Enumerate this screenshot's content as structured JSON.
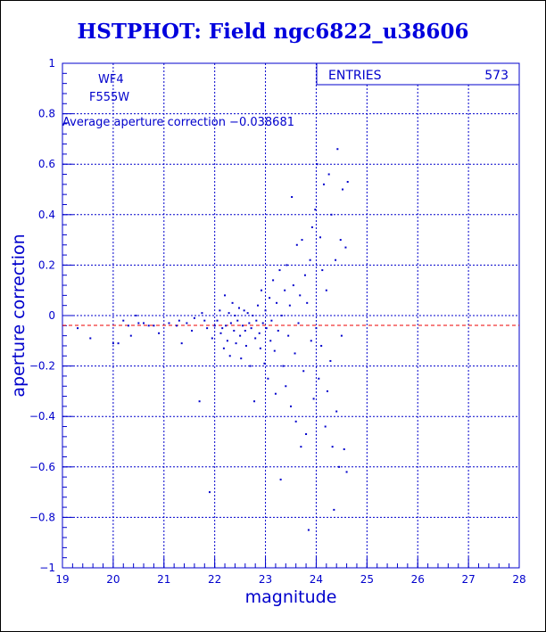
{
  "title": "HSTPHOT: Field ngc6822_u38606",
  "chart_data": {
    "type": "scatter",
    "title": "HSTPHOT: Field ngc6822_u38606",
    "xlabel": "magnitude",
    "ylabel": "aperture correction",
    "xlim": [
      19,
      28
    ],
    "ylim": [
      -1,
      1
    ],
    "xticks": [
      19,
      20,
      21,
      22,
      23,
      24,
      25,
      26,
      27,
      28
    ],
    "yticks": [
      -1,
      -0.8,
      -0.6,
      -0.4,
      -0.2,
      0,
      0.2,
      0.4,
      0.6,
      0.8,
      1
    ],
    "xtick_labels": [
      "19",
      "20",
      "21",
      "22",
      "23",
      "24",
      "25",
      "26",
      "27",
      "28"
    ],
    "ytick_labels": [
      "−1",
      "−0.8",
      "−0.6",
      "−0.4",
      "−0.2",
      "0",
      "0.2",
      "0.4",
      "0.6",
      "0.8",
      "1"
    ],
    "grid": true,
    "filter_labels": [
      "WF4",
      "F555W"
    ],
    "stats_box": {
      "label": "ENTRIES",
      "value": "573"
    },
    "average_annotation": "Average aperture correction −0.038681",
    "average_value": -0.038681,
    "points": [
      [
        19.3,
        -0.05
      ],
      [
        19.55,
        -0.09
      ],
      [
        20.0,
        -0.11
      ],
      [
        20.1,
        -0.11
      ],
      [
        20.2,
        -0.02
      ],
      [
        20.3,
        -0.04
      ],
      [
        20.35,
        -0.08
      ],
      [
        20.45,
        0.0
      ],
      [
        20.5,
        -0.03
      ],
      [
        20.6,
        -0.03
      ],
      [
        20.7,
        -0.04
      ],
      [
        20.8,
        -0.04
      ],
      [
        20.9,
        -0.07
      ],
      [
        21.1,
        -0.03
      ],
      [
        21.25,
        -0.04
      ],
      [
        21.3,
        -0.02
      ],
      [
        21.35,
        -0.11
      ],
      [
        21.45,
        -0.03
      ],
      [
        21.55,
        -0.06
      ],
      [
        21.6,
        -0.01
      ],
      [
        21.7,
        -0.34
      ],
      [
        21.75,
        0.01
      ],
      [
        21.8,
        -0.02
      ],
      [
        21.85,
        -0.05
      ],
      [
        21.9,
        -0.7
      ],
      [
        21.95,
        -0.09
      ],
      [
        22.0,
        -0.04
      ],
      [
        22.05,
        -0.02
      ],
      [
        22.1,
        0.02
      ],
      [
        22.12,
        -0.07
      ],
      [
        22.15,
        -0.05
      ],
      [
        22.18,
        -0.13
      ],
      [
        22.2,
        0.08
      ],
      [
        22.22,
        -0.04
      ],
      [
        22.25,
        -0.1
      ],
      [
        22.28,
        0.01
      ],
      [
        22.3,
        -0.16
      ],
      [
        22.32,
        -0.03
      ],
      [
        22.35,
        0.05
      ],
      [
        22.38,
        -0.06
      ],
      [
        22.4,
        0.0
      ],
      [
        22.42,
        -0.11
      ],
      [
        22.45,
        -0.02
      ],
      [
        22.48,
        0.03
      ],
      [
        22.5,
        -0.08
      ],
      [
        22.52,
        -0.17
      ],
      [
        22.55,
        -0.04
      ],
      [
        22.58,
        0.02
      ],
      [
        22.6,
        -0.06
      ],
      [
        22.62,
        -0.12
      ],
      [
        22.65,
        0.01
      ],
      [
        22.68,
        -0.03
      ],
      [
        22.7,
        -0.2
      ],
      [
        22.72,
        -0.05
      ],
      [
        22.75,
        0.0
      ],
      [
        22.78,
        -0.34
      ],
      [
        22.8,
        -0.09
      ],
      [
        22.82,
        -0.02
      ],
      [
        22.85,
        0.04
      ],
      [
        22.88,
        -0.07
      ],
      [
        22.9,
        -0.13
      ],
      [
        22.92,
        0.1
      ],
      [
        22.95,
        -0.03
      ],
      [
        22.98,
        -0.19
      ],
      [
        23.0,
        0.02
      ],
      [
        23.02,
        -0.05
      ],
      [
        23.05,
        -0.25
      ],
      [
        23.08,
        0.07
      ],
      [
        23.1,
        -0.1
      ],
      [
        23.12,
        -0.02
      ],
      [
        23.15,
        0.14
      ],
      [
        23.18,
        -0.14
      ],
      [
        23.2,
        -0.31
      ],
      [
        23.22,
        0.05
      ],
      [
        23.25,
        -0.06
      ],
      [
        23.28,
        0.18
      ],
      [
        23.3,
        -0.65
      ],
      [
        23.32,
        0.0
      ],
      [
        23.35,
        -0.2
      ],
      [
        23.38,
        0.1
      ],
      [
        23.4,
        -0.28
      ],
      [
        23.42,
        0.2
      ],
      [
        23.45,
        -0.08
      ],
      [
        23.48,
        0.04
      ],
      [
        23.5,
        -0.36
      ],
      [
        23.52,
        0.47
      ],
      [
        23.55,
        0.12
      ],
      [
        23.58,
        -0.15
      ],
      [
        23.6,
        -0.42
      ],
      [
        23.62,
        0.28
      ],
      [
        23.65,
        -0.03
      ],
      [
        23.68,
        0.08
      ],
      [
        23.7,
        -0.52
      ],
      [
        23.72,
        0.3
      ],
      [
        23.75,
        -0.22
      ],
      [
        23.78,
        0.16
      ],
      [
        23.8,
        -0.47
      ],
      [
        23.82,
        0.05
      ],
      [
        23.85,
        -0.85
      ],
      [
        23.88,
        0.22
      ],
      [
        23.9,
        -0.1
      ],
      [
        23.92,
        0.35
      ],
      [
        23.95,
        -0.33
      ],
      [
        23.98,
        0.42
      ],
      [
        24.0,
        -0.05
      ],
      [
        24.02,
        0.6
      ],
      [
        24.05,
        -0.25
      ],
      [
        24.08,
        0.31
      ],
      [
        24.1,
        -0.12
      ],
      [
        24.12,
        0.18
      ],
      [
        24.15,
        0.52
      ],
      [
        24.18,
        -0.44
      ],
      [
        24.2,
        0.1
      ],
      [
        24.22,
        -0.3
      ],
      [
        24.25,
        0.56
      ],
      [
        24.28,
        -0.18
      ],
      [
        24.3,
        0.4
      ],
      [
        24.32,
        -0.52
      ],
      [
        24.35,
        -0.77
      ],
      [
        24.38,
        0.22
      ],
      [
        24.4,
        -0.38
      ],
      [
        24.42,
        0.66
      ],
      [
        24.45,
        -0.6
      ],
      [
        24.48,
        0.3
      ],
      [
        24.5,
        -0.08
      ],
      [
        24.52,
        0.5
      ],
      [
        24.55,
        -0.53
      ],
      [
        24.58,
        0.27
      ],
      [
        24.6,
        -0.62
      ],
      [
        24.62,
        0.53
      ]
    ]
  }
}
